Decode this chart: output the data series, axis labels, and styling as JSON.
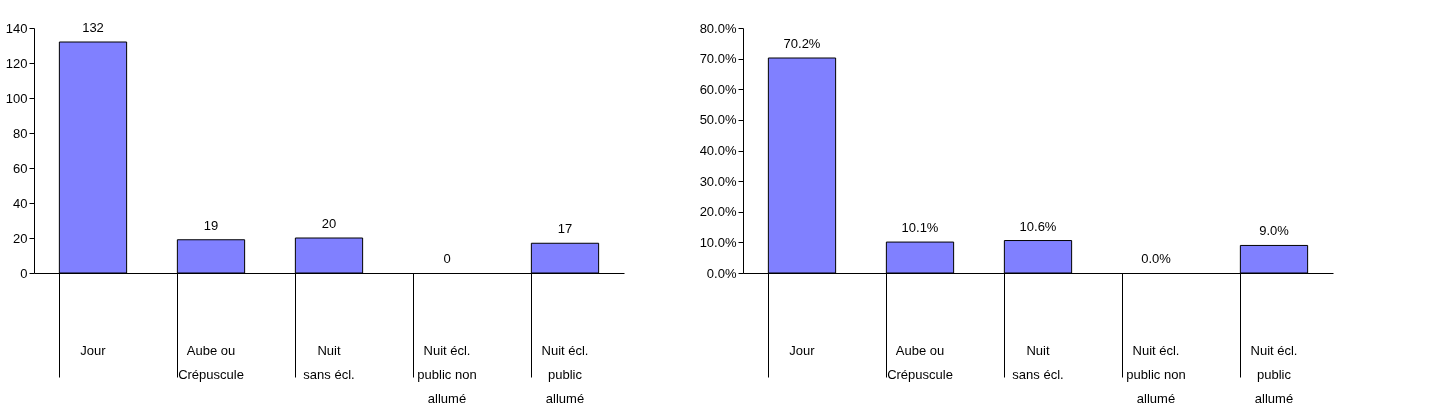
{
  "chart_data": [
    {
      "type": "bar",
      "categories": [
        "Jour",
        "Aube ou\nCrépuscule",
        "Nuit\nsans écl.",
        "Nuit écl.\npublic non\nallumé",
        "Nuit écl.\npublic\nallumé"
      ],
      "values": [
        132,
        19,
        20,
        0,
        17
      ],
      "color": "#8080ff",
      "ylim": [
        0,
        140
      ],
      "yticks": [
        0,
        20,
        40,
        60,
        80,
        100,
        120,
        140
      ],
      "data_labels": true,
      "grid": false
    },
    {
      "type": "bar",
      "categories": [
        "Jour",
        "Aube ou\nCrépuscule",
        "Nuit\nsans écl.",
        "Nuit écl.\npublic non\nallumé",
        "Nuit écl.\npublic\nallumé"
      ],
      "values": [
        70.2,
        10.1,
        10.6,
        0.0,
        9.0
      ],
      "value_labels": [
        "70.2%",
        "10.1%",
        "10.6%",
        "0.0%",
        "9.0%"
      ],
      "color": "#8080ff",
      "ylim": [
        0,
        80
      ],
      "yticks": [
        {
          "value": 0,
          "label": "0.0%"
        },
        {
          "value": 10,
          "label": "10.0%"
        },
        {
          "value": 20,
          "label": "20.0%"
        },
        {
          "value": 30,
          "label": "30.0%"
        },
        {
          "value": 40,
          "label": "40.0%"
        },
        {
          "value": 50,
          "label": "50.0%"
        },
        {
          "value": 60,
          "label": "60.0%"
        },
        {
          "value": 70,
          "label": "70.0%"
        },
        {
          "value": 80,
          "label": "80.0%"
        }
      ],
      "grid": false
    }
  ]
}
